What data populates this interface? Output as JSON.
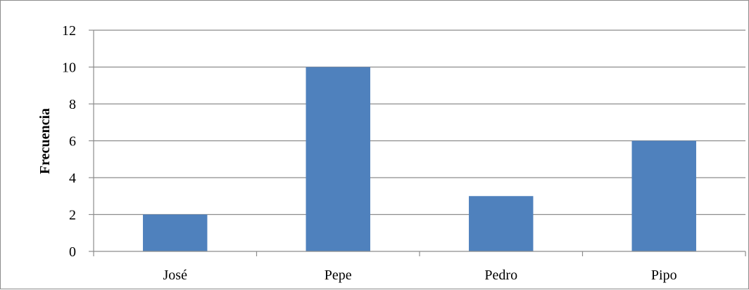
{
  "chart_data": {
    "type": "bar",
    "title": "",
    "xlabel": "",
    "ylabel": "Frecuencia",
    "categories": [
      "José",
      "Pepe",
      "Pedro",
      "Pipo"
    ],
    "values": [
      2,
      10,
      3,
      6
    ],
    "ylim": [
      0,
      12
    ],
    "yticks": [
      "0",
      "2",
      "4",
      "6",
      "8",
      "10",
      "12"
    ],
    "grid": true,
    "legend": "none",
    "bar_color": "#4f81bd",
    "grid_color": "#8c8c8c"
  }
}
